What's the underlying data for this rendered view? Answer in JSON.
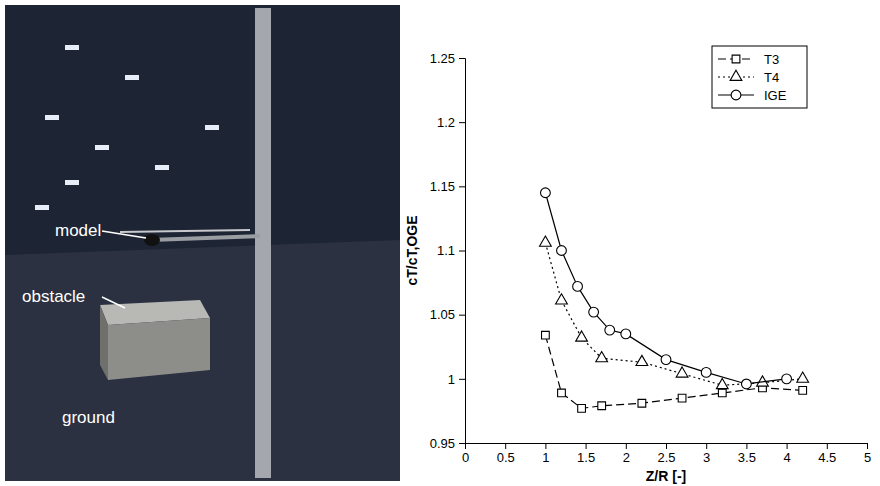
{
  "chart_data": {
    "type": "line",
    "x_label": "Z/R [-]",
    "y_label": "cT/cT,OGE",
    "xlim": [
      0,
      5
    ],
    "xticks": [
      0,
      0.5,
      1,
      1.5,
      2,
      2.5,
      3,
      3.5,
      4,
      4.5,
      5
    ],
    "ylim": [
      0.95,
      1.25
    ],
    "yticks": [
      0.95,
      1,
      1.05,
      1.1,
      1.15,
      1.2,
      1.25
    ],
    "grid": false,
    "legend": "top-right",
    "series": [
      {
        "name": "T3",
        "color": "#000000",
        "marker": "square",
        "line_style": "dashed",
        "x": [
          1.0,
          1.2,
          1.45,
          1.7,
          2.2,
          2.7,
          3.2,
          3.7,
          4.2
        ],
        "values": [
          1.034,
          0.989,
          0.977,
          0.979,
          0.981,
          0.985,
          0.989,
          0.993,
          0.991
        ]
      },
      {
        "name": "T4",
        "color": "#000000",
        "marker": "triangle",
        "line_style": "dotted",
        "x": [
          1.0,
          1.2,
          1.45,
          1.7,
          2.2,
          2.7,
          3.2,
          3.7,
          4.2
        ],
        "values": [
          1.106,
          1.061,
          1.032,
          1.016,
          1.013,
          1.004,
          0.995,
          0.997,
          1.0
        ]
      },
      {
        "name": "IGE",
        "color": "#000000",
        "marker": "circle",
        "line_style": "solid",
        "x": [
          1.0,
          1.2,
          1.4,
          1.6,
          1.8,
          2.0,
          2.5,
          3.0,
          3.5,
          4.0
        ],
        "values": [
          1.145,
          1.1,
          1.072,
          1.052,
          1.038,
          1.035,
          1.015,
          1.005,
          0.996,
          1.0
        ]
      }
    ]
  },
  "photo": {
    "labels": [
      "model",
      "obstacle",
      "ground"
    ]
  }
}
